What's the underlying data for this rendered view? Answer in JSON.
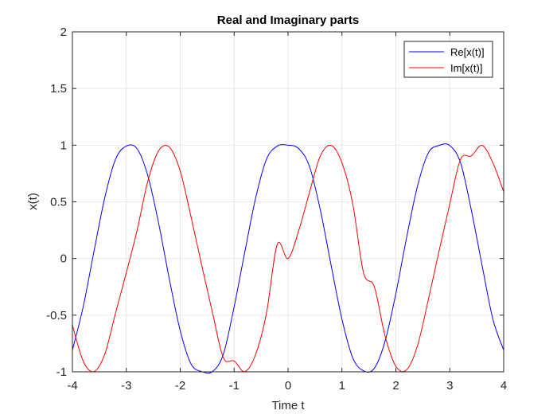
{
  "chart_data": {
    "type": "line",
    "title": "Real and Imaginary parts",
    "xlabel": "Time t",
    "ylabel": "x(t)",
    "xlim": [
      -4,
      4
    ],
    "ylim": [
      -1,
      2
    ],
    "xticks": [
      -4,
      -3,
      -2,
      -1,
      0,
      1,
      2,
      3,
      4
    ],
    "xtick_labels": [
      "-4",
      "-3",
      "-2",
      "-1",
      "0",
      "1",
      "2",
      "3",
      "4"
    ],
    "yticks": [
      -1,
      -0.5,
      0,
      0.5,
      1,
      1.5,
      2
    ],
    "ytick_labels": [
      "-1",
      "-0.5",
      "0",
      "0.5",
      "1",
      "1.5",
      "2"
    ],
    "grid": true,
    "legend_position": "top-right",
    "series": [
      {
        "name": "Re[x(t)]",
        "color": "#0000ff",
        "x": [
          -4,
          -3.8,
          -3.6,
          -3.4,
          -3.2,
          -3,
          -2.8,
          -2.6,
          -2.4,
          -2.2,
          -2,
          -1.8,
          -1.6,
          -1.4,
          -1.2,
          -1,
          -0.8,
          -0.6,
          -0.4,
          -0.2,
          0,
          0.2,
          0.4,
          0.6,
          0.8,
          1,
          1.2,
          1.4,
          1.6,
          1.8,
          2,
          2.2,
          2.4,
          2.6,
          2.8,
          3,
          3.2,
          3.4,
          3.6,
          3.8,
          4
        ],
        "y": [
          -0.809,
          -0.426,
          0.063,
          0.536,
          0.876,
          0.992,
          0.969,
          0.729,
          0.309,
          -0.187,
          -0.637,
          -0.93,
          -0.998,
          -0.997,
          -0.844,
          -0.426,
          0.063,
          0.536,
          0.876,
          0.992,
          1,
          0.969,
          0.809,
          0.426,
          -0.063,
          -0.536,
          -0.876,
          -0.992,
          -0.969,
          -0.729,
          -0.309,
          0.187,
          0.637,
          0.93,
          0.998,
          0.997,
          0.844,
          0.426,
          -0.063,
          -0.536,
          -0.809
        ]
      },
      {
        "name": "Im[x(t)]",
        "color": "#ff0000",
        "x": [
          -4,
          -3.8,
          -3.6,
          -3.4,
          -3.2,
          -3,
          -2.8,
          -2.6,
          -2.4,
          -2.2,
          -2,
          -1.8,
          -1.6,
          -1.4,
          -1.2,
          -1,
          -0.8,
          -0.6,
          -0.4,
          -0.2,
          0,
          0.2,
          0.4,
          0.6,
          0.8,
          1,
          1.2,
          1.4,
          1.6,
          1.8,
          2,
          2.2,
          2.4,
          2.6,
          2.8,
          3,
          3.2,
          3.4,
          3.6,
          3.8,
          4
        ],
        "y": [
          -0.588,
          -0.905,
          -0.998,
          -0.844,
          -0.482,
          -0.125,
          0.249,
          0.685,
          0.951,
          0.982,
          0.771,
          0.368,
          -0.063,
          -0.482,
          -0.876,
          -0.905,
          -0.998,
          -0.844,
          -0.482,
          0.125,
          0,
          0.249,
          0.588,
          0.905,
          0.998,
          0.844,
          0.482,
          -0.125,
          -0.249,
          -0.685,
          -0.951,
          -0.982,
          -0.771,
          -0.368,
          0.063,
          0.482,
          0.876,
          0.905,
          0.998,
          0.844,
          0.588
        ]
      }
    ]
  }
}
